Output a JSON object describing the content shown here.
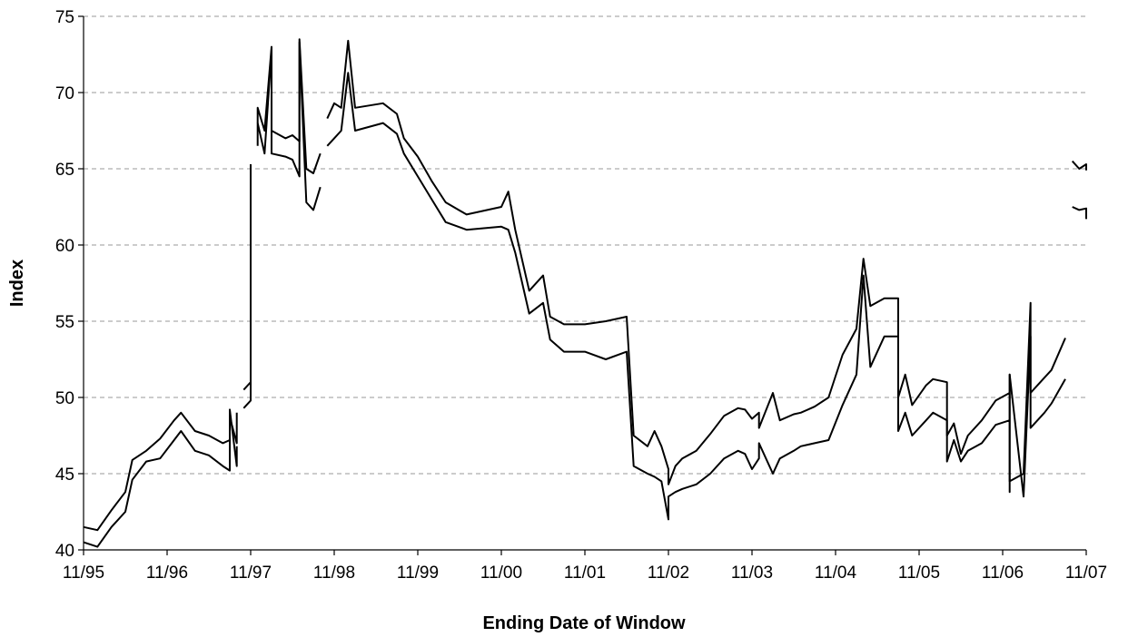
{
  "chart_data": {
    "type": "line",
    "xlabel": "Ending Date of Window",
    "ylabel": "Index",
    "x_tick_labels": [
      "11/95",
      "11/96",
      "11/97",
      "11/98",
      "11/99",
      "11/00",
      "11/01",
      "11/02",
      "11/03",
      "11/04",
      "11/05",
      "11/06",
      "11/07"
    ],
    "y_tick_labels": [
      "40",
      "45",
      "50",
      "55",
      "60",
      "65",
      "70",
      "75"
    ],
    "xlim": [
      "11/95",
      "11/07"
    ],
    "ylim": [
      40,
      75
    ],
    "grid": "horizontal dashed",
    "legend": "none",
    "series_color": "#000000",
    "series": [
      {
        "values": [
          [
            "11/95",
            41.5
          ],
          [
            "01/96",
            41.3
          ],
          [
            "03/96",
            42.6
          ],
          [
            "05/96",
            43.8
          ],
          [
            "06/96",
            45.9
          ],
          [
            "08/96",
            46.5
          ],
          [
            "10/96",
            47.3
          ],
          [
            "12/96",
            48.5
          ],
          [
            "01/97",
            49.0
          ],
          [
            "03/97",
            47.8
          ],
          [
            "05/97",
            47.5
          ],
          [
            "07/97",
            47.0
          ],
          [
            "08/97",
            47.2
          ],
          [
            "08/97",
            48.7
          ],
          [
            "09/97",
            47.0
          ],
          [
            "09/97",
            49.0
          ],
          null,
          [
            "10/97",
            50.5
          ],
          [
            "11/97",
            51.0
          ],
          [
            "11/97",
            65.3
          ],
          null,
          [
            "12/97",
            68.0
          ],
          [
            "12/97",
            69.0
          ],
          [
            "01/98",
            67.5
          ],
          [
            "02/98",
            73.0
          ],
          [
            "02/98",
            67.5
          ],
          [
            "04/98",
            67.0
          ],
          [
            "05/98",
            67.2
          ],
          [
            "06/98",
            66.8
          ],
          [
            "06/98",
            73.5
          ],
          [
            "07/98",
            65.0
          ],
          [
            "08/98",
            64.7
          ],
          [
            "09/98",
            66.0
          ],
          null,
          [
            "10/98",
            68.3
          ],
          [
            "11/98",
            69.3
          ],
          [
            "12/98",
            69.0
          ],
          [
            "01/99",
            73.4
          ],
          [
            "02/99",
            69.0
          ],
          [
            "06/99",
            69.3
          ],
          [
            "08/99",
            68.6
          ],
          [
            "09/99",
            67.0
          ],
          [
            "11/99",
            65.8
          ],
          [
            "01/00",
            64.2
          ],
          [
            "03/00",
            62.8
          ],
          [
            "06/00",
            62.0
          ],
          [
            "11/00",
            62.5
          ],
          [
            "12/00",
            63.5
          ],
          [
            "01/01",
            61.0
          ],
          [
            "03/01",
            57.0
          ],
          [
            "05/01",
            58.0
          ],
          [
            "06/01",
            55.3
          ],
          [
            "08/01",
            54.8
          ],
          [
            "11/01",
            54.8
          ],
          [
            "02/02",
            55.0
          ],
          [
            "05/02",
            55.3
          ],
          [
            "06/02",
            47.5
          ],
          [
            "08/02",
            46.8
          ],
          [
            "09/02",
            47.8
          ],
          [
            "10/02",
            46.8
          ],
          [
            "11/02",
            45.3
          ],
          [
            "11/02",
            44.3
          ],
          [
            "12/02",
            45.5
          ],
          [
            "01/03",
            46.0
          ],
          [
            "03/03",
            46.5
          ],
          [
            "05/03",
            47.6
          ],
          [
            "07/03",
            48.8
          ],
          [
            "09/03",
            49.3
          ],
          [
            "10/03",
            49.2
          ],
          [
            "11/03",
            48.6
          ],
          [
            "12/03",
            49.0
          ],
          [
            "12/03",
            48.0
          ],
          [
            "02/04",
            50.3
          ],
          [
            "03/04",
            48.5
          ],
          [
            "05/04",
            48.9
          ],
          [
            "06/04",
            49.0
          ],
          [
            "08/04",
            49.4
          ],
          [
            "10/04",
            50.0
          ],
          [
            "12/04",
            52.8
          ],
          [
            "02/05",
            54.5
          ],
          [
            "03/05",
            59.1
          ],
          [
            "04/05",
            56.0
          ],
          [
            "06/05",
            56.5
          ],
          [
            "08/05",
            56.5
          ],
          [
            "08/05",
            50.0
          ],
          [
            "09/05",
            51.5
          ],
          [
            "10/05",
            49.5
          ],
          [
            "12/05",
            50.8
          ],
          [
            "01/06",
            51.2
          ],
          [
            "03/06",
            51.0
          ],
          [
            "03/06",
            47.5
          ],
          [
            "04/06",
            48.3
          ],
          [
            "05/06",
            46.3
          ],
          [
            "06/06",
            47.5
          ],
          [
            "08/06",
            48.5
          ],
          [
            "10/06",
            49.8
          ],
          [
            "12/06",
            50.3
          ],
          [
            "12/06",
            51.5
          ],
          [
            "12/06",
            44.5
          ],
          [
            "02/07",
            45.0
          ],
          [
            "03/07",
            56.2
          ],
          [
            "03/07",
            50.3
          ],
          [
            "05/07",
            51.3
          ],
          [
            "06/07",
            51.8
          ],
          [
            "08/07",
            53.9
          ],
          null,
          [
            "09/07",
            65.5
          ],
          [
            "10/07",
            65.0
          ],
          [
            "11/07",
            65.3
          ],
          [
            "11/07",
            64.9
          ]
        ]
      },
      {
        "values": [
          [
            "11/95",
            40.5
          ],
          [
            "01/96",
            40.2
          ],
          [
            "03/96",
            41.5
          ],
          [
            "05/96",
            42.5
          ],
          [
            "06/96",
            44.6
          ],
          [
            "08/96",
            45.8
          ],
          [
            "10/96",
            46.0
          ],
          [
            "12/96",
            47.2
          ],
          [
            "01/97",
            47.8
          ],
          [
            "03/97",
            46.5
          ],
          [
            "05/97",
            46.2
          ],
          [
            "07/97",
            45.5
          ],
          [
            "08/97",
            45.2
          ],
          [
            "08/97",
            49.2
          ],
          [
            "09/97",
            45.5
          ],
          [
            "09/97",
            46.8
          ],
          null,
          [
            "10/97",
            49.3
          ],
          [
            "11/97",
            49.8
          ],
          [
            "11/97",
            64.0
          ],
          null,
          [
            "12/97",
            66.5
          ],
          [
            "12/97",
            68.0
          ],
          [
            "01/98",
            66.0
          ],
          [
            "02/98",
            72.8
          ],
          [
            "02/98",
            66.0
          ],
          [
            "04/98",
            65.8
          ],
          [
            "05/98",
            65.6
          ],
          [
            "06/98",
            64.5
          ],
          [
            "06/98",
            73.3
          ],
          [
            "07/98",
            62.8
          ],
          [
            "08/98",
            62.3
          ],
          [
            "09/98",
            63.8
          ],
          null,
          [
            "10/98",
            66.5
          ],
          [
            "11/98",
            67.0
          ],
          [
            "12/98",
            67.5
          ],
          [
            "01/99",
            71.3
          ],
          [
            "02/99",
            67.5
          ],
          [
            "06/99",
            68.0
          ],
          [
            "08/99",
            67.3
          ],
          [
            "09/99",
            66.0
          ],
          [
            "11/99",
            64.5
          ],
          [
            "01/00",
            63.0
          ],
          [
            "03/00",
            61.5
          ],
          [
            "06/00",
            61.0
          ],
          [
            "11/00",
            61.2
          ],
          [
            "12/00",
            61.0
          ],
          [
            "01/01",
            59.5
          ],
          [
            "03/01",
            55.5
          ],
          [
            "05/01",
            56.2
          ],
          [
            "06/01",
            53.8
          ],
          [
            "08/01",
            53.0
          ],
          [
            "11/01",
            53.0
          ],
          [
            "02/02",
            52.5
          ],
          [
            "05/02",
            53.0
          ],
          [
            "06/02",
            45.5
          ],
          [
            "08/02",
            45.0
          ],
          [
            "09/02",
            44.8
          ],
          [
            "10/02",
            44.5
          ],
          [
            "11/02",
            42.0
          ],
          [
            "11/02",
            43.5
          ],
          [
            "12/02",
            43.8
          ],
          [
            "01/03",
            44.0
          ],
          [
            "03/03",
            44.3
          ],
          [
            "05/03",
            45.0
          ],
          [
            "07/03",
            46.0
          ],
          [
            "09/03",
            46.5
          ],
          [
            "10/03",
            46.3
          ],
          [
            "11/03",
            45.3
          ],
          [
            "12/03",
            46.0
          ],
          [
            "12/03",
            47.0
          ],
          [
            "02/04",
            45.0
          ],
          [
            "03/04",
            46.0
          ],
          [
            "05/04",
            46.5
          ],
          [
            "06/04",
            46.8
          ],
          [
            "08/04",
            47.0
          ],
          [
            "10/04",
            47.2
          ],
          [
            "12/04",
            49.5
          ],
          [
            "02/05",
            51.5
          ],
          [
            "03/05",
            58.0
          ],
          [
            "04/05",
            52.0
          ],
          [
            "06/05",
            54.0
          ],
          [
            "08/05",
            54.0
          ],
          [
            "08/05",
            47.8
          ],
          [
            "09/05",
            49.0
          ],
          [
            "10/05",
            47.5
          ],
          [
            "12/05",
            48.5
          ],
          [
            "01/06",
            49.0
          ],
          [
            "03/06",
            48.5
          ],
          [
            "03/06",
            45.8
          ],
          [
            "04/06",
            47.2
          ],
          [
            "05/06",
            45.8
          ],
          [
            "06/06",
            46.5
          ],
          [
            "08/06",
            47.0
          ],
          [
            "10/06",
            48.2
          ],
          [
            "12/06",
            48.5
          ],
          [
            "12/06",
            43.8
          ],
          [
            "12/06",
            51.5
          ],
          [
            "02/07",
            43.5
          ],
          [
            "03/07",
            54.0
          ],
          [
            "03/07",
            48.0
          ],
          [
            "05/07",
            49.0
          ],
          [
            "06/07",
            49.6
          ],
          [
            "08/07",
            51.2
          ],
          null,
          [
            "09/07",
            62.5
          ],
          [
            "10/07",
            62.3
          ],
          [
            "11/07",
            62.4
          ],
          [
            "11/07",
            61.7
          ]
        ]
      }
    ]
  }
}
